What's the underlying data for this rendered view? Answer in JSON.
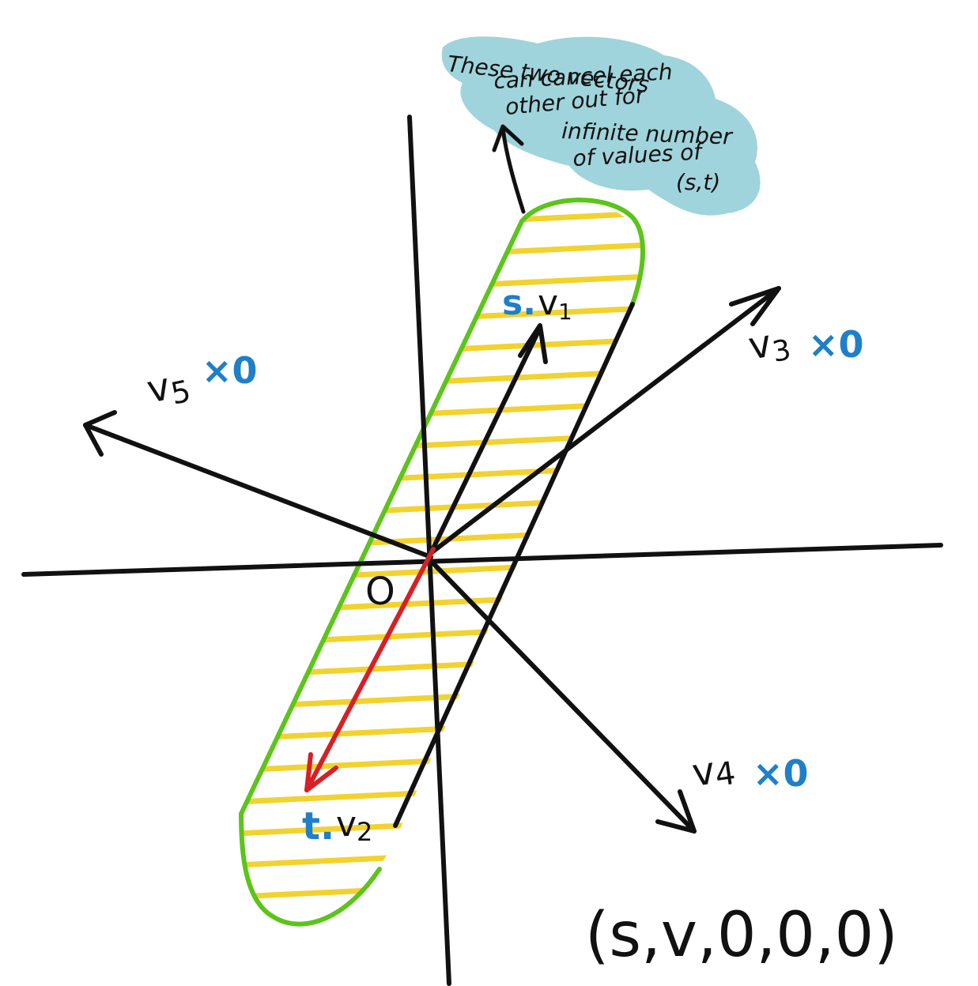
{
  "note": {
    "lines": [
      "These two vectors",
      "can cancel each",
      "other out for",
      "infinite number",
      "of values of",
      "(s,t)"
    ],
    "bubble_color": "#9fd4dc"
  },
  "labels": {
    "origin": "O",
    "v1_coef": "s.",
    "v1": "v",
    "v1_sub": "1",
    "v2_coef": "t.",
    "v2": "v",
    "v2_sub": "2",
    "v3": "v",
    "v3_sub": "3",
    "v3_coef": "×0",
    "v4": "v",
    "v4_sub": "4",
    "v4_coef": "×0",
    "v5": "v",
    "v5_sub": "5",
    "v5_coef": "×0",
    "tuple": "(s,v,0,0,0)"
  },
  "colors": {
    "ink": "#111111",
    "coef_blue": "#1f7fc9",
    "red_vector": "#d81f26",
    "region_outline": "#5cc41a",
    "hatch": "#f2d22e",
    "bubble": "#9fd4dc"
  }
}
